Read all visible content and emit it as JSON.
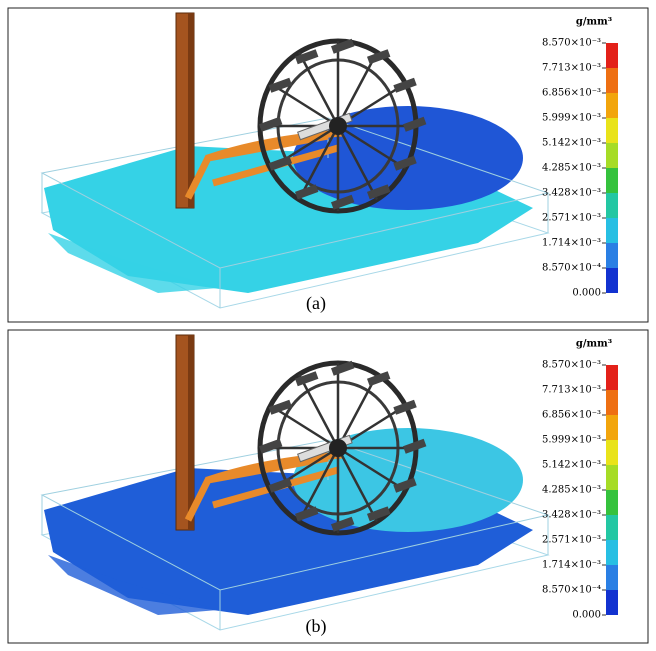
{
  "panels": [
    {
      "caption": "(a)",
      "unit": "g/mm³",
      "scale_labels": [
        "8.570×10⁻³",
        "7.713×10⁻³",
        "6.856×10⁻³",
        "5.999×10⁻³",
        "5.142×10⁻³",
        "4.285×10⁻³",
        "3.428×10⁻³",
        "2.571×10⁻³",
        "1.714×10⁻³",
        "8.570×10⁻⁴",
        "0.000"
      ]
    },
    {
      "caption": "(b)",
      "unit": "g/mm³",
      "scale_labels": [
        "8.570×10⁻³",
        "7.713×10⁻³",
        "6.856×10⁻³",
        "5.999×10⁻³",
        "5.142×10⁻³",
        "4.285×10⁻³",
        "3.428×10⁻³",
        "2.571×10⁻³",
        "1.714×10⁻³",
        "8.570×10⁻⁴",
        "0.000"
      ]
    }
  ]
}
